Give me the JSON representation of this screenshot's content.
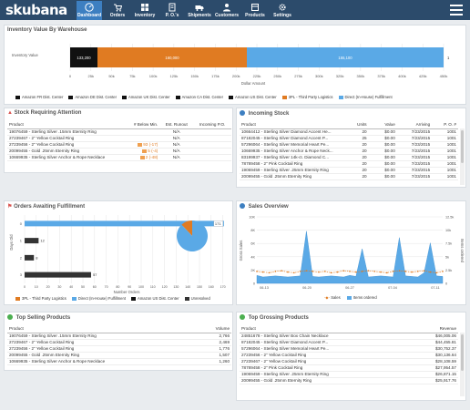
{
  "app": {
    "logo": "skubana",
    "nav": [
      {
        "label": "Dashboard",
        "icon": "dashboard-icon"
      },
      {
        "label": "Orders",
        "icon": "orders-icon"
      },
      {
        "label": "Inventory",
        "icon": "inventory-icon"
      },
      {
        "label": "P. O.'s",
        "icon": "purchase-orders-icon"
      },
      {
        "label": "Shipments",
        "icon": "shipments-icon"
      },
      {
        "label": "Customers",
        "icon": "customers-icon"
      },
      {
        "label": "Products",
        "icon": "products-icon"
      },
      {
        "label": "Settings",
        "icon": "settings-icon"
      }
    ],
    "colors": {
      "nav_bg": "#2c4b6b",
      "nav_active": "#3d7fc1",
      "orange": "#e07b22",
      "blue": "#5aa9e6",
      "black": "#111111"
    }
  },
  "inventory_value": {
    "title": "Inventory Value By Warehouse",
    "ylabel": "Inventory Value",
    "xlabel": "Dollar Amount",
    "bar_labels": [
      "133,200",
      "160,000",
      "155,100"
    ],
    "end_value": "1",
    "ticks": [
      "0",
      "25k",
      "50k",
      "75k",
      "100k",
      "125k",
      "150k",
      "175k",
      "200k",
      "225k",
      "250k",
      "275k",
      "300k",
      "325k",
      "350k",
      "375k",
      "400k",
      "425k",
      "450k"
    ],
    "legend": [
      {
        "label": "Amazon FR Dist. Center",
        "color": "#111111"
      },
      {
        "label": "Amazon DE Dist. Center",
        "color": "#111111"
      },
      {
        "label": "Amazon UK Dist. Center",
        "color": "#111111"
      },
      {
        "label": "Amazon CA Dist. Center",
        "color": "#111111"
      },
      {
        "label": "Amazon US Dist. Center",
        "color": "#111111"
      },
      {
        "label": "3PL - Third Party Logistics",
        "color": "#e07b22"
      },
      {
        "label": "Direct (In-House) Fulfillment",
        "color": "#5aa9e6"
      }
    ]
  },
  "stock_attention": {
    "title": "Stock Requiring Attention",
    "columns": [
      "Product",
      "# Below Min.",
      "Est. Runout",
      "Incoming P.O."
    ],
    "rows": [
      {
        "product": "19076459 - Sterling Silver .15mm Eternity Ring",
        "below": "",
        "runout": "N/A",
        "incoming": ""
      },
      {
        "product": "27239467 - 2\" Yellow Cocktail Ring",
        "below": "",
        "runout": "N/A",
        "incoming": ""
      },
      {
        "product": "27239456 - 2\" Yellow Cocktail Ring",
        "below": "93 (-17)",
        "runout": "N/A",
        "incoming": ""
      },
      {
        "product": "20099455 - Gold .25mm Eternity Ring",
        "below": "5 (-4)",
        "runout": "N/A",
        "incoming": ""
      },
      {
        "product": "10669935 - Sterling Silver Anchor & Rope Necklace",
        "below": "2 (-48)",
        "runout": "N/A",
        "incoming": ""
      }
    ]
  },
  "incoming_stock": {
    "title": "Incoming Stock",
    "columns": [
      "Product",
      "Units",
      "Value",
      "Arriving",
      "P. O. #"
    ],
    "rows": [
      {
        "product": "10664412 - Sterling Silver Diamond Accent He...",
        "units": "20",
        "value": "$0.00",
        "arriving": "7/23/2015",
        "po": "1001"
      },
      {
        "product": "87182045 - Sterling Silver Diamond Accent P...",
        "units": "25",
        "value": "$0.00",
        "arriving": "7/23/2015",
        "po": "1001"
      },
      {
        "product": "57296064 - Sterling Silver Memorial Heart Pe...",
        "units": "20",
        "value": "$0.00",
        "arriving": "7/23/2015",
        "po": "1001"
      },
      {
        "product": "10669935 - Sterling Silver Anchor & Rope Neck...",
        "units": "20",
        "value": "$0.00",
        "arriving": "7/23/2015",
        "po": "1001"
      },
      {
        "product": "83199937 - Sterling Silver 14k-ct. Diamond C...",
        "units": "20",
        "value": "$0.00",
        "arriving": "7/23/2015",
        "po": "1001"
      },
      {
        "product": "78789458 - 2\" Pink Cocktail Ring",
        "units": "20",
        "value": "$0.00",
        "arriving": "7/23/2015",
        "po": "1001"
      },
      {
        "product": "19069459 - Sterling Silver .25mm Eternity Ring",
        "units": "20",
        "value": "$0.00",
        "arriving": "7/23/2015",
        "po": "1001"
      },
      {
        "product": "20099455 - Gold .25mm Eternity Ring",
        "units": "20",
        "value": "$0.00",
        "arriving": "7/23/2015",
        "po": "1001"
      }
    ]
  },
  "orders_awaiting": {
    "title": "Orders Awaiting Fulfillment",
    "ylabel": "Days Old",
    "xlabel": "Number Orders",
    "chart_data": {
      "type": "bar",
      "orientation": "horizontal",
      "categories": [
        "0",
        "1",
        "2",
        "3"
      ],
      "values": [
        171,
        12,
        8,
        57
      ],
      "xlim": [
        0,
        175
      ],
      "ticks": [
        "0",
        "10",
        "20",
        "30",
        "40",
        "50",
        "60",
        "70",
        "80",
        "90",
        "100",
        "110",
        "120",
        "130",
        "140",
        "150",
        "160",
        "170"
      ],
      "bar_labels": [
        "171",
        "12",
        "8",
        "57"
      ],
      "pie": [
        {
          "label": "3PL - Third Party Logistics",
          "value": 12,
          "color": "#e07b22"
        },
        {
          "label": "Direct (In-House) Fulfillment",
          "value": 88,
          "color": "#5aa9e6"
        }
      ]
    },
    "legend": [
      {
        "label": "3PL - Third Party Logistics",
        "color": "#e07b22"
      },
      {
        "label": "Direct (In-House) Fulfillment",
        "color": "#5aa9e6"
      },
      {
        "label": "Amazon US Dist. Center",
        "color": "#111111"
      },
      {
        "label": "Unresolved",
        "color": "#333333"
      }
    ]
  },
  "sales_overview": {
    "title": "Sales Overview",
    "ylabel_left": "Gross Sales",
    "ylabel_right": "Items ordered",
    "chart_data": {
      "type": "area",
      "x_ticks": [
        "06-13",
        "06-20",
        "06-27",
        "07-04",
        "07-11"
      ],
      "y_left_ticks": [
        "0",
        "2K",
        "4K",
        "6K",
        "8K",
        "10K"
      ],
      "y_right_ticks": [
        "0",
        "2.5k",
        "5k",
        "7.5k",
        "10k",
        "12.5k"
      ],
      "series": [
        {
          "name": "Sales",
          "values": [
            1800,
            1700,
            1600,
            1800,
            1900,
            1700,
            1600,
            1800,
            1900,
            1800,
            1700,
            1800,
            1600,
            1700,
            1900,
            1800,
            1700,
            1800,
            1900,
            1800,
            1700,
            1600,
            1800,
            1900,
            1800,
            1700,
            1800,
            1900,
            1700,
            1600,
            1800
          ]
        },
        {
          "name": "Items ordered",
          "values": [
            1500,
            1200,
            1300,
            1400,
            1300,
            1200,
            1300,
            1400,
            9800,
            1300,
            1200,
            1300,
            1400,
            1300,
            1200,
            1500,
            1300,
            6500,
            1200,
            1300,
            1400,
            1300,
            1200,
            8600,
            1400,
            1300,
            1200,
            2000,
            7600,
            1400,
            1300
          ]
        }
      ]
    },
    "legend": [
      {
        "label": "Sales",
        "color": "#e07b22"
      },
      {
        "label": "Items ordered",
        "color": "#5aa9e6"
      }
    ]
  },
  "top_selling": {
    "title": "Top Selling Products",
    "columns": [
      "Product",
      "Volume"
    ],
    "rows": [
      {
        "product": "19076459 - Sterling Silver .15mm Eternity Ring",
        "value": "2,766"
      },
      {
        "product": "27239467 - 2\" Yellow Cocktail Ring",
        "value": "2,469"
      },
      {
        "product": "27239456 - 2\" Yellow Cocktail Ring",
        "value": "1,776"
      },
      {
        "product": "20099455 - Gold .25mm Eternity Ring",
        "value": "1,507"
      },
      {
        "product": "10669935 - Sterling Silver Anchor & Rope Necklace",
        "value": "1,260"
      }
    ]
  },
  "top_grossing": {
    "title": "Top Grossing Products",
    "columns": [
      "Product",
      "Revenue"
    ],
    "rows": [
      {
        "product": "24851678 - Sterling Silver Box Chain Necklace",
        "value": "$46,005.06"
      },
      {
        "product": "87182045 - Sterling Silver Diamond Accent P...",
        "value": "$44,455.81"
      },
      {
        "product": "57296064 - Sterling Silver Memorial Heart Pe...",
        "value": "$30,752.37"
      },
      {
        "product": "27239456 - 2\" Yellow Cocktail Ring",
        "value": "$30,136.64"
      },
      {
        "product": "27239467 - 2\" Yellow Cocktail Ring",
        "value": "$28,108.59"
      },
      {
        "product": "78789458 - 2\" Pink Cocktail Ring",
        "value": "$27,954.57"
      },
      {
        "product": "19069459 - Sterling Silver .25mm Eternity Ring",
        "value": "$26,871.15"
      },
      {
        "product": "20099455 - Gold .25mm Eternity Ring",
        "value": "$25,917.76"
      }
    ]
  }
}
